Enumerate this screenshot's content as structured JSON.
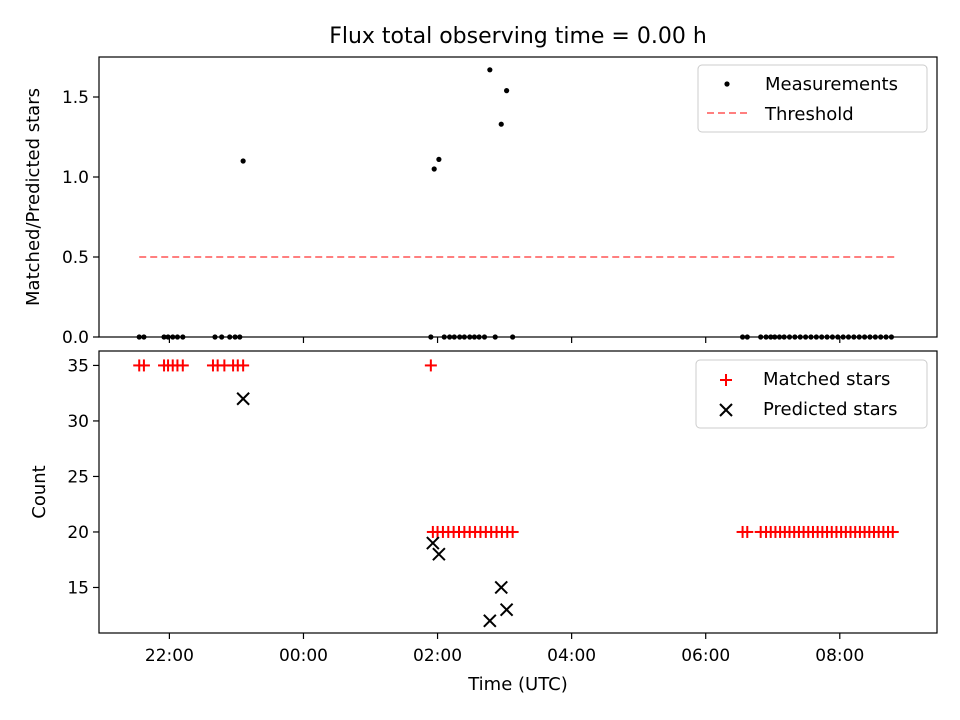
{
  "chart_data": [
    {
      "type": "scatter",
      "title": "Flux total observing time = 0.00 h",
      "xlabel": "",
      "ylabel": "Matched/Predicted stars",
      "ylim": [
        0,
        1.75
      ],
      "yticks": [
        0.0,
        0.5,
        1.0,
        1.5
      ],
      "ytick_labels": [
        "0.0",
        "0.5",
        "1.0",
        "1.5"
      ],
      "xlim_hours": [
        20.95,
        33.45
      ],
      "xticks_hours": [
        22,
        24,
        26,
        28,
        30,
        32
      ],
      "grid": false,
      "legend_position": "top-right",
      "legend": [
        "Measurements",
        "Threshold"
      ],
      "threshold": {
        "label": "Threshold",
        "value": 0.5,
        "x_start_hours": 21.55,
        "x_end_hours": 32.85,
        "color": "#ff7f7f",
        "style": "dashed"
      },
      "series": [
        {
          "name": "Measurements",
          "marker": "dot",
          "color": "#000000",
          "points": [
            [
              21.55,
              0
            ],
            [
              21.62,
              0
            ],
            [
              21.92,
              0
            ],
            [
              21.98,
              0
            ],
            [
              22.05,
              0
            ],
            [
              22.12,
              0
            ],
            [
              22.2,
              0
            ],
            [
              22.68,
              0
            ],
            [
              22.78,
              0
            ],
            [
              22.9,
              0
            ],
            [
              22.98,
              0
            ],
            [
              23.05,
              0
            ],
            [
              23.1,
              1.1
            ],
            [
              25.9,
              0
            ],
            [
              25.95,
              1.05
            ],
            [
              26.02,
              1.11
            ],
            [
              26.1,
              0
            ],
            [
              26.18,
              0
            ],
            [
              26.25,
              0
            ],
            [
              26.33,
              0
            ],
            [
              26.4,
              0
            ],
            [
              26.48,
              0
            ],
            [
              26.55,
              0
            ],
            [
              26.62,
              0
            ],
            [
              26.7,
              0
            ],
            [
              26.78,
              1.67
            ],
            [
              26.86,
              0
            ],
            [
              26.95,
              1.33
            ],
            [
              27.03,
              1.54
            ],
            [
              27.12,
              0
            ],
            [
              30.55,
              0
            ],
            [
              30.62,
              0
            ],
            [
              30.82,
              0
            ],
            [
              30.9,
              0
            ],
            [
              30.97,
              0
            ],
            [
              31.03,
              0
            ],
            [
              31.1,
              0
            ],
            [
              31.17,
              0
            ],
            [
              31.25,
              0
            ],
            [
              31.33,
              0
            ],
            [
              31.41,
              0
            ],
            [
              31.49,
              0
            ],
            [
              31.57,
              0
            ],
            [
              31.65,
              0
            ],
            [
              31.73,
              0
            ],
            [
              31.81,
              0
            ],
            [
              31.89,
              0
            ],
            [
              31.97,
              0
            ],
            [
              32.05,
              0
            ],
            [
              32.13,
              0
            ],
            [
              32.21,
              0
            ],
            [
              32.29,
              0
            ],
            [
              32.37,
              0
            ],
            [
              32.45,
              0
            ],
            [
              32.53,
              0
            ],
            [
              32.61,
              0
            ],
            [
              32.69,
              0
            ],
            [
              32.77,
              0
            ]
          ]
        }
      ]
    },
    {
      "type": "scatter",
      "title": "",
      "xlabel": "Time (UTC)",
      "ylabel": "Count",
      "ylim": [
        10.9,
        36.3
      ],
      "yticks": [
        15,
        20,
        25,
        30,
        35
      ],
      "ytick_labels": [
        "15",
        "20",
        "25",
        "30",
        "35"
      ],
      "xlim_hours": [
        20.95,
        33.45
      ],
      "xticks_hours": [
        22,
        24,
        26,
        28,
        30,
        32
      ],
      "xtick_labels": [
        "22:00",
        "00:00",
        "02:00",
        "04:00",
        "06:00",
        "08:00"
      ],
      "grid": false,
      "legend_position": "top-right",
      "legend": [
        "Matched stars",
        "Predicted stars"
      ],
      "series": [
        {
          "name": "Matched stars",
          "marker": "plus",
          "color": "#ff0000",
          "points": [
            [
              21.55,
              35
            ],
            [
              21.62,
              35
            ],
            [
              21.92,
              35
            ],
            [
              21.98,
              35
            ],
            [
              22.05,
              35
            ],
            [
              22.12,
              35
            ],
            [
              22.2,
              35
            ],
            [
              22.65,
              35
            ],
            [
              22.72,
              35
            ],
            [
              22.82,
              35
            ],
            [
              22.95,
              35
            ],
            [
              23.02,
              35
            ],
            [
              23.1,
              35
            ],
            [
              25.9,
              35
            ],
            [
              25.93,
              20
            ],
            [
              26.0,
              20
            ],
            [
              26.08,
              20
            ],
            [
              26.16,
              20
            ],
            [
              26.24,
              20
            ],
            [
              26.32,
              20
            ],
            [
              26.4,
              20
            ],
            [
              26.48,
              20
            ],
            [
              26.56,
              20
            ],
            [
              26.64,
              20
            ],
            [
              26.72,
              20
            ],
            [
              26.8,
              20
            ],
            [
              26.88,
              20
            ],
            [
              26.96,
              20
            ],
            [
              27.04,
              20
            ],
            [
              27.12,
              20
            ],
            [
              30.55,
              20
            ],
            [
              30.62,
              20
            ],
            [
              30.82,
              20
            ],
            [
              30.9,
              20
            ],
            [
              30.97,
              20
            ],
            [
              31.04,
              20
            ],
            [
              31.11,
              20
            ],
            [
              31.18,
              20
            ],
            [
              31.25,
              20
            ],
            [
              31.32,
              20
            ],
            [
              31.39,
              20
            ],
            [
              31.46,
              20
            ],
            [
              31.53,
              20
            ],
            [
              31.6,
              20
            ],
            [
              31.67,
              20
            ],
            [
              31.74,
              20
            ],
            [
              31.81,
              20
            ],
            [
              31.88,
              20
            ],
            [
              31.95,
              20
            ],
            [
              32.02,
              20
            ],
            [
              32.09,
              20
            ],
            [
              32.16,
              20
            ],
            [
              32.23,
              20
            ],
            [
              32.3,
              20
            ],
            [
              32.37,
              20
            ],
            [
              32.44,
              20
            ],
            [
              32.51,
              20
            ],
            [
              32.58,
              20
            ],
            [
              32.65,
              20
            ],
            [
              32.72,
              20
            ],
            [
              32.79,
              20
            ]
          ]
        },
        {
          "name": "Predicted stars",
          "marker": "x",
          "color": "#000000",
          "points": [
            [
              23.1,
              32
            ],
            [
              25.93,
              19
            ],
            [
              26.02,
              18
            ],
            [
              26.78,
              12
            ],
            [
              26.95,
              15
            ],
            [
              27.03,
              13
            ]
          ]
        }
      ]
    }
  ]
}
